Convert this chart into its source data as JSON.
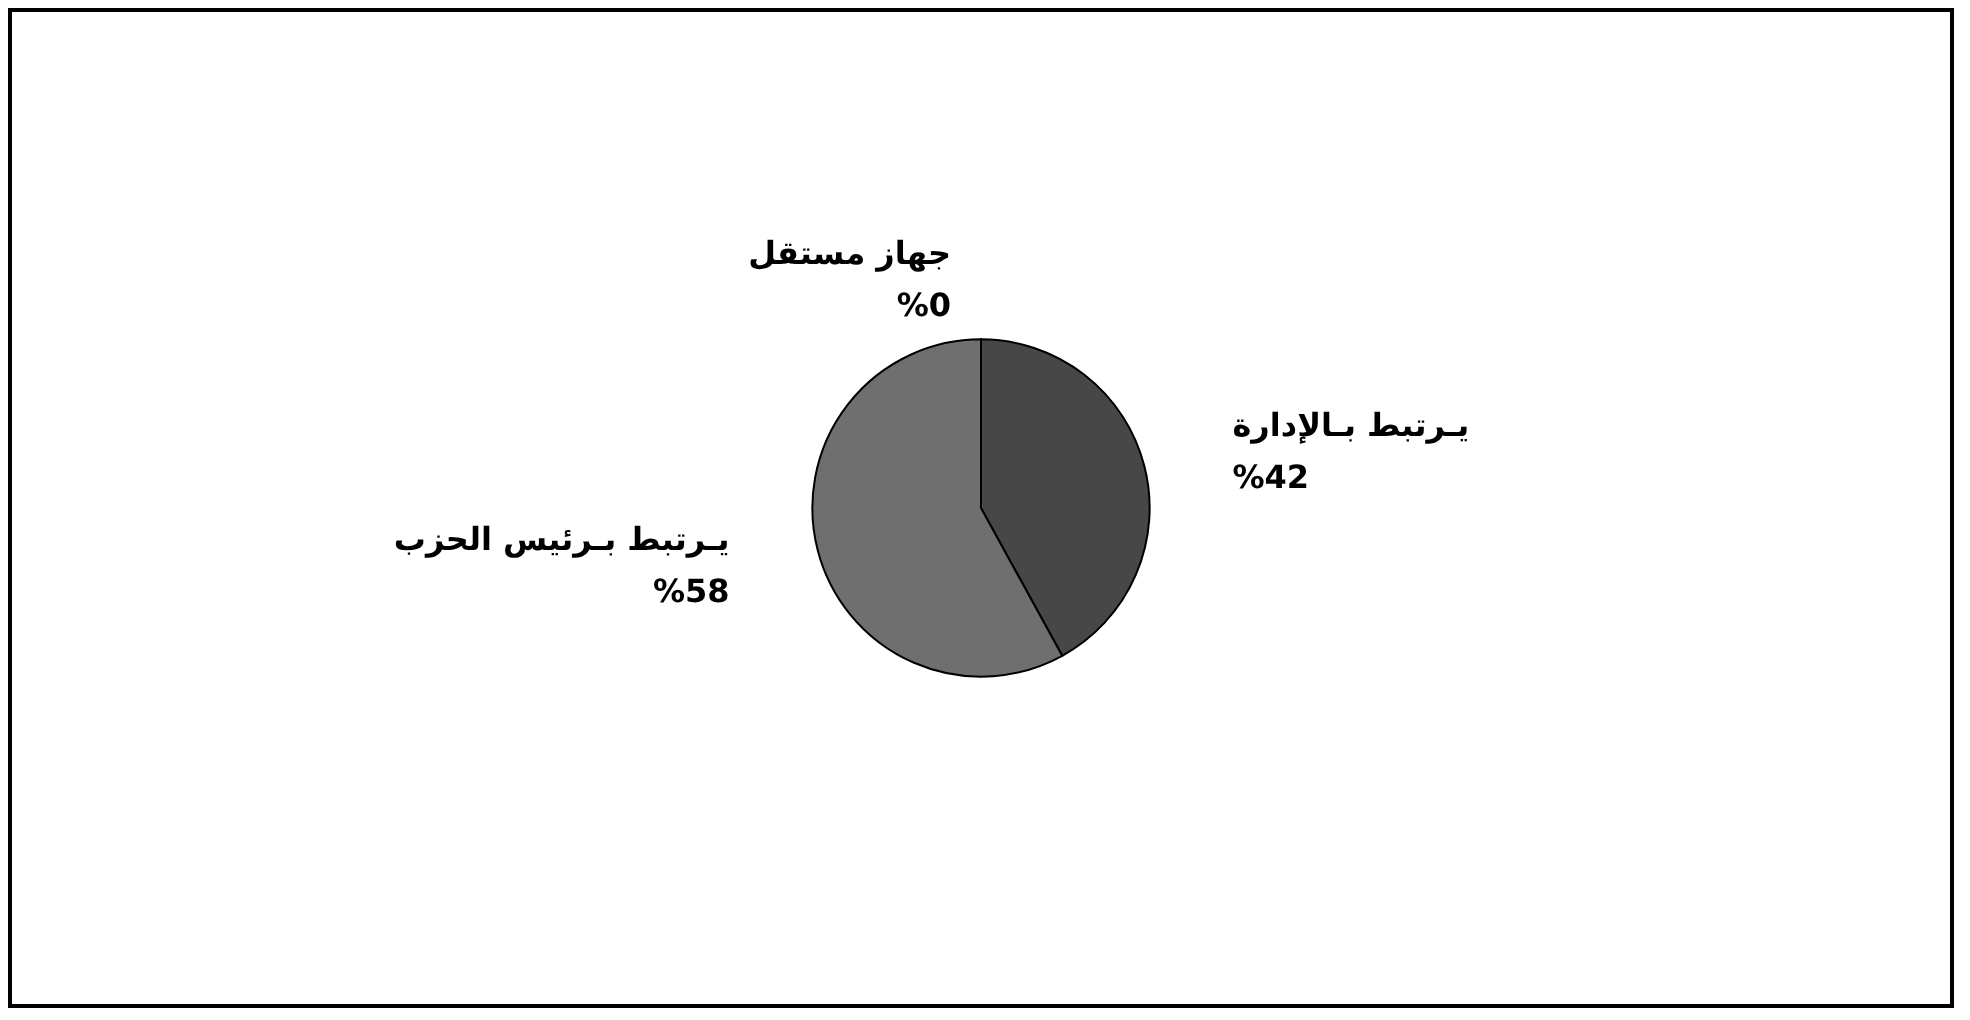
{
  "chart_data": {
    "type": "pie",
    "categories": [
      "جهاز مستقل",
      "يـرتبط بـالإدارة",
      "يـرتبط بـرئيس الحزب"
    ],
    "values": [
      0,
      42,
      58
    ],
    "value_labels": [
      "%0",
      "%42",
      "%58"
    ],
    "colors": [
      "#ffffff",
      "#474747",
      "#6f6f6f"
    ],
    "legend": false
  }
}
